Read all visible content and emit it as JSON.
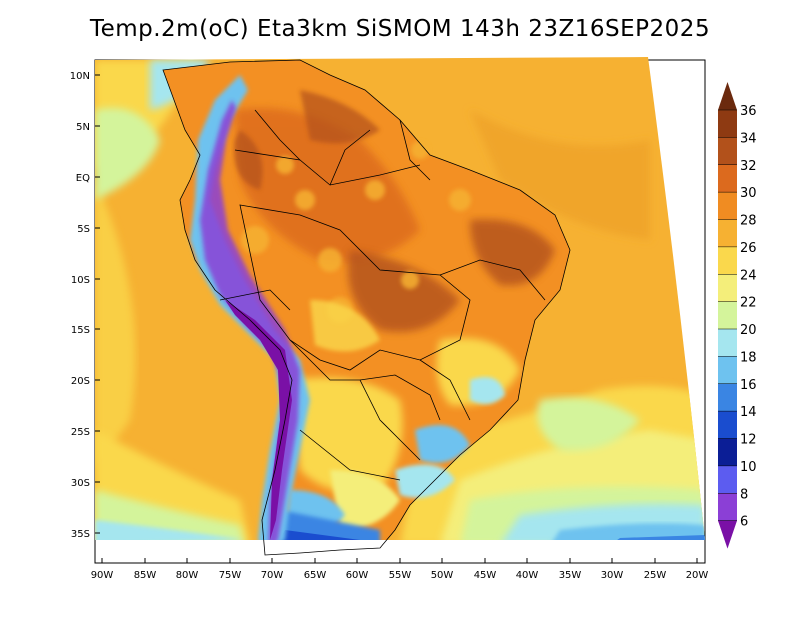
{
  "title": "Temp.2m(oC) Eta3km SiSMOM 143h 23Z16SEP2025",
  "map": {
    "lat_labels": [
      "10N",
      "5N",
      "EQ",
      "5S",
      "10S",
      "15S",
      "20S",
      "25S",
      "30S",
      "35S"
    ],
    "lon_labels": [
      "90W",
      "85W",
      "80W",
      "75W",
      "70W",
      "65W",
      "60W",
      "55W",
      "50W",
      "45W",
      "40W",
      "35W",
      "30W",
      "25W",
      "20W"
    ]
  },
  "colorbar": {
    "labels": [
      "36",
      "34",
      "32",
      "30",
      "28",
      "26",
      "24",
      "22",
      "20",
      "18",
      "16",
      "14",
      "12",
      "10",
      "8",
      "6"
    ],
    "colors": [
      "#6b2a0e",
      "#8e3a12",
      "#b2511b",
      "#dc6a1e",
      "#f08c22",
      "#f6b132",
      "#fad84c",
      "#f4ee7a",
      "#d4f49b",
      "#a5e6ef",
      "#6ec2ef",
      "#3a85e3",
      "#1a4dcf",
      "#0b1e96",
      "#5c5cf0",
      "#8b3fd6",
      "#7a10a6"
    ]
  }
}
